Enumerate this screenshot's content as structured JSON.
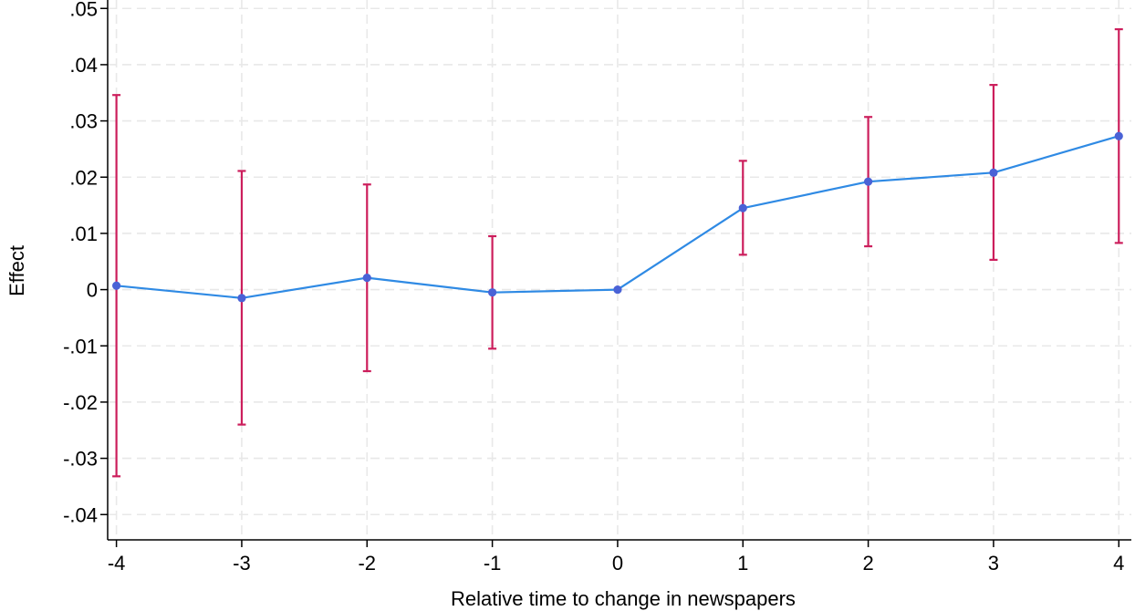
{
  "chart_data": {
    "type": "line",
    "title": "",
    "xlabel": "Relative time to change in newspapers",
    "ylabel": "Effect",
    "x": [
      -4,
      -3,
      -2,
      -1,
      0,
      1,
      2,
      3,
      4
    ],
    "x_tick_labels": [
      "-4",
      "-3",
      "-2",
      "-1",
      "0",
      "1",
      "2",
      "3",
      "4"
    ],
    "y_ticks": [
      0.05,
      0.04,
      0.03,
      0.02,
      0.01,
      0,
      -0.01,
      -0.02,
      -0.03,
      -0.04
    ],
    "y_tick_labels": [
      ".05",
      ".04",
      ".03",
      ".02",
      ".01",
      "0",
      "-.01",
      "-.02",
      "-.03",
      "-.04"
    ],
    "xlim": [
      -4.07,
      4.1
    ],
    "ylim": [
      -0.0445,
      0.0515
    ],
    "grid": true,
    "legend": "none",
    "series": [
      {
        "values": [
          0.0007,
          -0.0015,
          0.0021,
          -0.0005,
          0.0,
          0.0145,
          0.0192,
          0.0208,
          0.0273
        ],
        "ci_lower": [
          -0.0332,
          -0.024,
          -0.0145,
          -0.0105,
          0.0,
          0.0062,
          0.0077,
          0.0053,
          0.0083
        ],
        "ci_upper": [
          0.0346,
          0.0211,
          0.0187,
          0.0095,
          0.0,
          0.0229,
          0.0307,
          0.0364,
          0.0463
        ],
        "line_color": "#2f8ae4",
        "marker_color": "#4a62d6",
        "ci_color": "#cc1e5c"
      }
    ],
    "colors": {
      "grid": "#e8e8e8",
      "axis": "#000000"
    }
  }
}
